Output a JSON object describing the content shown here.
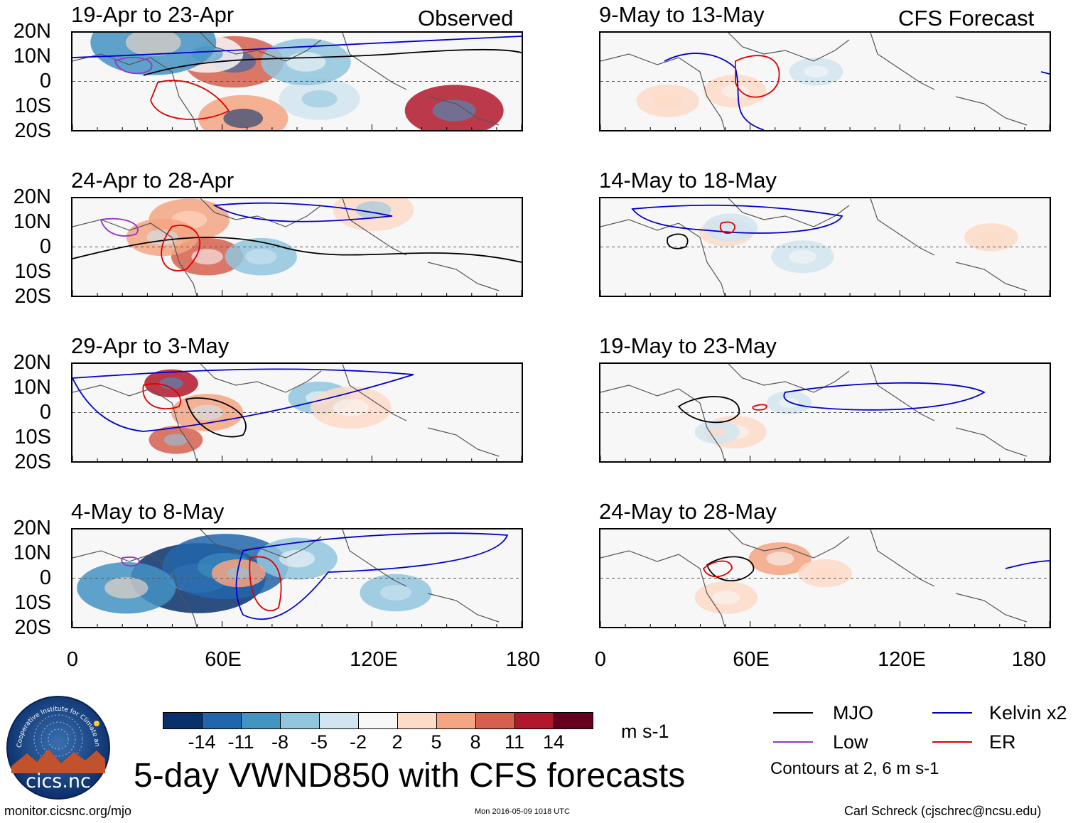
{
  "chart_data": {
    "type": "heatmap",
    "title": "5-day VWND850 with CFS forecasts",
    "variable": "VWND850",
    "units": "m s-1",
    "column_headers": {
      "left": "Observed",
      "right": "CFS Forecast"
    },
    "lat_ticks": [
      "20N",
      "10N",
      "0",
      "10S",
      "20S"
    ],
    "lon_ticks": [
      "0",
      "60E",
      "120E",
      "180"
    ],
    "lat_range": [
      -20,
      20
    ],
    "lon_range": [
      0,
      180
    ],
    "colorbar": {
      "levels": [
        "-14",
        "-11",
        "-8",
        "-5",
        "-2",
        "2",
        "5",
        "8",
        "11",
        "14"
      ],
      "colors": [
        "#08306b",
        "#2166ac",
        "#4393c3",
        "#92c5de",
        "#d1e5f0",
        "#f7f7f7",
        "#fddbc7",
        "#f4a582",
        "#d6604d",
        "#b2182b",
        "#67001f"
      ],
      "units_label": "m s-1"
    },
    "panels": [
      {
        "title": "19-Apr to 23-Apr",
        "kind": "observed"
      },
      {
        "title": "24-Apr to 28-Apr",
        "kind": "observed"
      },
      {
        "title": "29-Apr to 3-May",
        "kind": "observed"
      },
      {
        "title": "4-May to 8-May",
        "kind": "observed"
      },
      {
        "title": "9-May to 13-May",
        "kind": "forecast"
      },
      {
        "title": "14-May to 18-May",
        "kind": "forecast"
      },
      {
        "title": "19-May to 23-May",
        "kind": "forecast"
      },
      {
        "title": "24-May to 28-May",
        "kind": "forecast"
      }
    ],
    "legend": [
      {
        "label": "MJO",
        "color": "#000000"
      },
      {
        "label": "Kelvin x2",
        "color": "#0000cc"
      },
      {
        "label": "Low",
        "color": "#9933cc"
      },
      {
        "label": "ER",
        "color": "#dd0000"
      }
    ],
    "contour_note": "Contours at 2, 6 m s-1"
  },
  "logo": {
    "text": "cics.nc",
    "ring_text": "Cooperative Institute for Climate and Satellites"
  },
  "footer": {
    "url": "monitor.cicsnc.org/mjo",
    "timestamp": "Mon 2016-05-09 1018 UTC",
    "credit": "Carl Schreck (cjschrec@ncsu.edu)"
  }
}
